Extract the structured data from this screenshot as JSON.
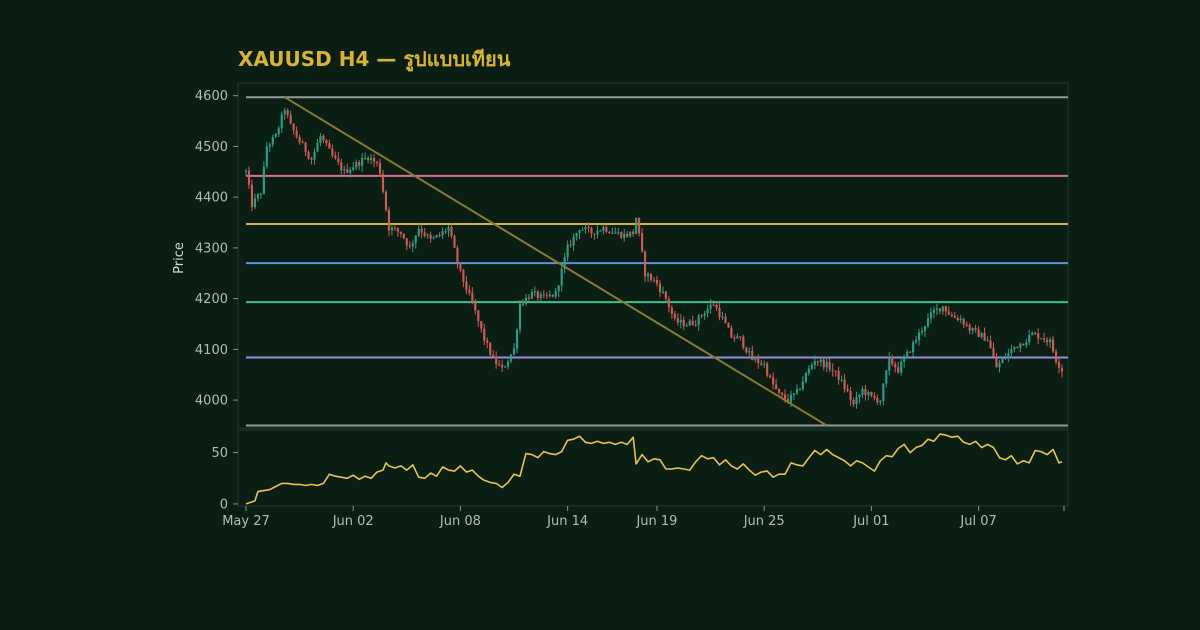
{
  "chart_data": {
    "type": "candlestick",
    "title": "XAUUSD H4 — รูปแบบเทียน",
    "ylabel": "Price",
    "xlabel": "",
    "price_axis": {
      "ylim": [
        3945,
        4625
      ],
      "ticks": [
        4000,
        4100,
        4200,
        4300,
        4400,
        4500,
        4600
      ]
    },
    "indicator_axis": {
      "ylim": [
        -2,
        72
      ],
      "ticks": [
        0,
        50
      ]
    },
    "x_ticks": [
      {
        "label": "May 27",
        "bar": 0
      },
      {
        "label": "Jun 02",
        "bar": 36
      },
      {
        "label": "Jun 08",
        "bar": 72
      },
      {
        "label": "Jun 14",
        "bar": 108
      },
      {
        "label": "Jun 19",
        "bar": 138
      },
      {
        "label": "Jun 25",
        "bar": 174
      },
      {
        "label": "Jul 01",
        "bar": 210
      },
      {
        "label": "Jul 07",
        "bar": 246
      }
    ],
    "bar_count": 275,
    "horizontal_levels": [
      {
        "price": 4597,
        "color": "#8f9e98"
      },
      {
        "price": 4442,
        "color": "#d9709a"
      },
      {
        "price": 4347,
        "color": "#d8b33c"
      },
      {
        "price": 4270,
        "color": "#5f95d8"
      },
      {
        "price": 4193,
        "color": "#3cc28a"
      },
      {
        "price": 4084,
        "color": "#9a8cdc"
      },
      {
        "price": 3950,
        "color": "#8f9e98"
      }
    ],
    "trendline": {
      "from": {
        "bar": 13,
        "price": 4597
      },
      "to": {
        "bar": 195,
        "price": 3950
      },
      "color": "#8a7b32"
    },
    "price_path": [
      [
        0,
        4450
      ],
      [
        2,
        4385
      ],
      [
        5,
        4410
      ],
      [
        7,
        4500
      ],
      [
        10,
        4520
      ],
      [
        13,
        4575
      ],
      [
        15,
        4540
      ],
      [
        18,
        4510
      ],
      [
        22,
        4475
      ],
      [
        25,
        4520
      ],
      [
        29,
        4480
      ],
      [
        33,
        4450
      ],
      [
        37,
        4465
      ],
      [
        41,
        4480
      ],
      [
        44,
        4465
      ],
      [
        45,
        4450
      ],
      [
        48,
        4340
      ],
      [
        52,
        4330
      ],
      [
        55,
        4300
      ],
      [
        58,
        4340
      ],
      [
        62,
        4315
      ],
      [
        65,
        4325
      ],
      [
        68,
        4340
      ],
      [
        72,
        4250
      ],
      [
        76,
        4190
      ],
      [
        80,
        4120
      ],
      [
        83,
        4080
      ],
      [
        86,
        4060
      ],
      [
        90,
        4100
      ],
      [
        92,
        4190
      ],
      [
        96,
        4210
      ],
      [
        100,
        4200
      ],
      [
        104,
        4210
      ],
      [
        108,
        4300
      ],
      [
        112,
        4340
      ],
      [
        116,
        4330
      ],
      [
        120,
        4340
      ],
      [
        124,
        4330
      ],
      [
        127,
        4325
      ],
      [
        130,
        4330
      ],
      [
        131,
        4360
      ],
      [
        134,
        4250
      ],
      [
        138,
        4230
      ],
      [
        141,
        4200
      ],
      [
        144,
        4155
      ],
      [
        148,
        4150
      ],
      [
        151,
        4155
      ],
      [
        154,
        4175
      ],
      [
        157,
        4190
      ],
      [
        160,
        4160
      ],
      [
        163,
        4125
      ],
      [
        166,
        4120
      ],
      [
        170,
        4080
      ],
      [
        174,
        4070
      ],
      [
        176,
        4040
      ],
      [
        179,
        4010
      ],
      [
        182,
        4000
      ],
      [
        185,
        4015
      ],
      [
        188,
        4050
      ],
      [
        191,
        4080
      ],
      [
        193,
        4075
      ],
      [
        196,
        4065
      ],
      [
        199,
        4045
      ],
      [
        202,
        4015
      ],
      [
        204,
        3990
      ],
      [
        207,
        4020
      ],
      [
        210,
        4005
      ],
      [
        213,
        4000
      ],
      [
        216,
        4080
      ],
      [
        219,
        4060
      ],
      [
        222,
        4090
      ],
      [
        225,
        4120
      ],
      [
        228,
        4150
      ],
      [
        231,
        4175
      ],
      [
        234,
        4185
      ],
      [
        237,
        4165
      ],
      [
        240,
        4160
      ],
      [
        243,
        4140
      ],
      [
        246,
        4130
      ],
      [
        249,
        4120
      ],
      [
        252,
        4065
      ],
      [
        255,
        4085
      ],
      [
        258,
        4105
      ],
      [
        261,
        4115
      ],
      [
        264,
        4130
      ],
      [
        267,
        4125
      ],
      [
        270,
        4115
      ],
      [
        272,
        4080
      ],
      [
        274,
        4060
      ]
    ],
    "indicator": [
      [
        0,
        0
      ],
      [
        1,
        1
      ],
      [
        2,
        2
      ],
      [
        3,
        3
      ],
      [
        4,
        12
      ],
      [
        6,
        13
      ],
      [
        8,
        14
      ],
      [
        10,
        17
      ],
      [
        12,
        20
      ],
      [
        14,
        20
      ],
      [
        16,
        19
      ],
      [
        18,
        19
      ],
      [
        20,
        18
      ],
      [
        22,
        19
      ],
      [
        24,
        18
      ],
      [
        26,
        20
      ],
      [
        28,
        29
      ],
      [
        30,
        27
      ],
      [
        32,
        26
      ],
      [
        34,
        25
      ],
      [
        36,
        28
      ],
      [
        38,
        24
      ],
      [
        40,
        27
      ],
      [
        42,
        25
      ],
      [
        44,
        31
      ],
      [
        46,
        33
      ],
      [
        47,
        40
      ],
      [
        48,
        37
      ],
      [
        50,
        35
      ],
      [
        52,
        37
      ],
      [
        54,
        33
      ],
      [
        56,
        38
      ],
      [
        58,
        26
      ],
      [
        60,
        25
      ],
      [
        62,
        30
      ],
      [
        64,
        27
      ],
      [
        66,
        36
      ],
      [
        68,
        33
      ],
      [
        70,
        32
      ],
      [
        72,
        37
      ],
      [
        74,
        31
      ],
      [
        76,
        33
      ],
      [
        78,
        27
      ],
      [
        80,
        23
      ],
      [
        82,
        21
      ],
      [
        84,
        20
      ],
      [
        86,
        16
      ],
      [
        88,
        21
      ],
      [
        90,
        29
      ],
      [
        92,
        27
      ],
      [
        94,
        49
      ],
      [
        96,
        48
      ],
      [
        98,
        45
      ],
      [
        100,
        51
      ],
      [
        102,
        49
      ],
      [
        104,
        48
      ],
      [
        106,
        51
      ],
      [
        108,
        62
      ],
      [
        110,
        63
      ],
      [
        112,
        66
      ],
      [
        114,
        60
      ],
      [
        116,
        59
      ],
      [
        118,
        61
      ],
      [
        120,
        59
      ],
      [
        122,
        60
      ],
      [
        124,
        58
      ],
      [
        126,
        60
      ],
      [
        128,
        58
      ],
      [
        130,
        65
      ],
      [
        131,
        39
      ],
      [
        133,
        48
      ],
      [
        135,
        41
      ],
      [
        137,
        44
      ],
      [
        139,
        43
      ],
      [
        141,
        34
      ],
      [
        143,
        34
      ],
      [
        145,
        35
      ],
      [
        147,
        34
      ],
      [
        149,
        33
      ],
      [
        151,
        41
      ],
      [
        153,
        47
      ],
      [
        155,
        44
      ],
      [
        157,
        45
      ],
      [
        159,
        38
      ],
      [
        161,
        43
      ],
      [
        163,
        37
      ],
      [
        165,
        34
      ],
      [
        167,
        39
      ],
      [
        169,
        33
      ],
      [
        171,
        28
      ],
      [
        173,
        31
      ],
      [
        175,
        32
      ],
      [
        177,
        26
      ],
      [
        179,
        29
      ],
      [
        181,
        29
      ],
      [
        183,
        40
      ],
      [
        185,
        38
      ],
      [
        187,
        37
      ],
      [
        189,
        45
      ],
      [
        191,
        52
      ],
      [
        193,
        48
      ],
      [
        195,
        53
      ],
      [
        197,
        48
      ],
      [
        199,
        45
      ],
      [
        201,
        42
      ],
      [
        203,
        37
      ],
      [
        205,
        42
      ],
      [
        207,
        40
      ],
      [
        209,
        36
      ],
      [
        211,
        32
      ],
      [
        213,
        42
      ],
      [
        215,
        47
      ],
      [
        217,
        46
      ],
      [
        219,
        54
      ],
      [
        221,
        58
      ],
      [
        223,
        50
      ],
      [
        225,
        55
      ],
      [
        227,
        57
      ],
      [
        229,
        63
      ],
      [
        231,
        61
      ],
      [
        233,
        68
      ],
      [
        235,
        67
      ],
      [
        237,
        65
      ],
      [
        239,
        66
      ],
      [
        241,
        60
      ],
      [
        243,
        58
      ],
      [
        245,
        61
      ],
      [
        247,
        55
      ],
      [
        249,
        58
      ],
      [
        251,
        55
      ],
      [
        253,
        45
      ],
      [
        255,
        43
      ],
      [
        257,
        47
      ],
      [
        259,
        39
      ],
      [
        261,
        42
      ],
      [
        263,
        40
      ],
      [
        265,
        52
      ],
      [
        267,
        51
      ],
      [
        269,
        48
      ],
      [
        271,
        53
      ],
      [
        273,
        40
      ],
      [
        274,
        41
      ]
    ],
    "colors": {
      "up": "#2f9d84",
      "down": "#d05a55",
      "indicator": "#e9c251",
      "grid_border": "#1f3a2e"
    },
    "grid": false
  }
}
